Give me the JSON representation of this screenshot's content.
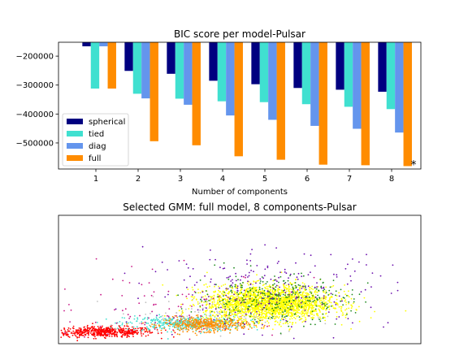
{
  "chart_data": [
    {
      "type": "bar",
      "title": "BIC score per model-Pulsar",
      "xlabel": "Number of components",
      "ylabel": "",
      "categories": [
        "1",
        "2",
        "3",
        "4",
        "5",
        "6",
        "7",
        "8"
      ],
      "ylim": [
        -590000,
        -152000
      ],
      "yticks": [
        -200000,
        -300000,
        -400000,
        -500000
      ],
      "ytick_labels": [
        "−200000",
        "−300000",
        "−400000",
        "−500000"
      ],
      "series": [
        {
          "name": "spherical",
          "color": "#000080",
          "values": [
            -166000,
            -251000,
            -261000,
            -285000,
            -297000,
            -310000,
            -316000,
            -323000
          ]
        },
        {
          "name": "tied",
          "color": "#40e0d0",
          "values": [
            -312000,
            -330000,
            -347000,
            -356000,
            -359000,
            -366000,
            -375000,
            -383000
          ]
        },
        {
          "name": "diag",
          "color": "#6495ed",
          "values": [
            -166000,
            -346000,
            -368000,
            -405000,
            -420000,
            -441000,
            -451000,
            -464000
          ]
        },
        {
          "name": "full",
          "color": "#ff8c00",
          "values": [
            -312000,
            -494000,
            -508000,
            -546000,
            -558000,
            -575000,
            -577000,
            -580000
          ]
        }
      ],
      "grid": false,
      "legend_position": "lower-left",
      "annotation": "*"
    },
    {
      "type": "scatter",
      "title": "Selected GMM: full model, 8 components-Pulsar",
      "xlabel": "",
      "ylabel": "",
      "show_ticks": false,
      "xlim": [
        -4,
        8
      ],
      "ylim": [
        -2,
        4
      ],
      "clusters": [
        {
          "color": "#ff0000",
          "center": [
            -2.5,
            -1.45
          ],
          "spread": [
            0.85,
            0.12
          ],
          "count": 520
        },
        {
          "color": "#40e0d0",
          "center": [
            0.2,
            -1.05
          ],
          "spread": [
            1.0,
            0.18
          ],
          "count": 420
        },
        {
          "color": "#ff8c00",
          "center": [
            0.9,
            -1.1
          ],
          "spread": [
            0.7,
            0.16
          ],
          "count": 460
        },
        {
          "color": "#c0c0c0",
          "center": [
            1.2,
            -0.6
          ],
          "spread": [
            1.3,
            0.45
          ],
          "count": 150
        },
        {
          "color": "#ffff00",
          "center": [
            3.0,
            -0.1
          ],
          "spread": [
            1.05,
            0.4
          ],
          "count": 2300
        },
        {
          "color": "#228b22",
          "center": [
            3.1,
            0.1
          ],
          "spread": [
            1.3,
            0.55
          ],
          "count": 320
        },
        {
          "color": "#6a0dad",
          "center": [
            3.0,
            0.6
          ],
          "spread": [
            2.0,
            0.9
          ],
          "count": 230
        },
        {
          "color": "#c71585",
          "center": [
            -0.5,
            -0.3
          ],
          "spread": [
            2.0,
            0.8
          ],
          "count": 90
        }
      ]
    }
  ]
}
